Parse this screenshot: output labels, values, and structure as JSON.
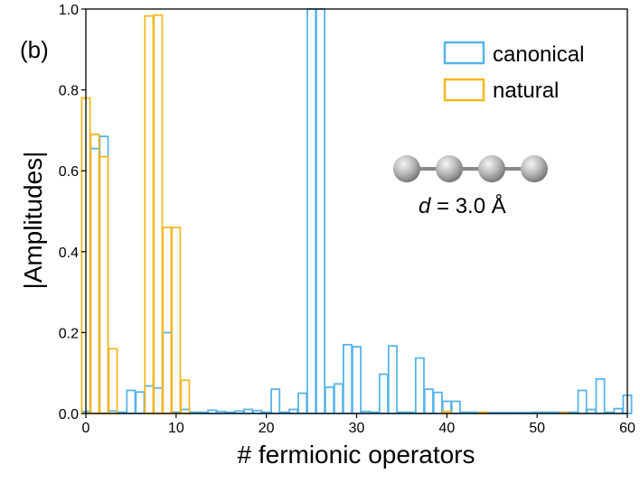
{
  "chart_data": {
    "type": "bar",
    "title": "",
    "panel_label": "(b)",
    "xlabel": "# fermionic operators",
    "ylabel": "|Amplitudes|",
    "xlim": [
      0,
      60
    ],
    "ylim": [
      0,
      1.0
    ],
    "xticks": [
      0,
      10,
      20,
      30,
      40,
      50,
      60
    ],
    "yticks": [
      0.0,
      0.2,
      0.4,
      0.6,
      0.8,
      1.0
    ],
    "xtick_labels": [
      "0",
      "10",
      "20",
      "30",
      "40",
      "50",
      "60"
    ],
    "ytick_labels": [
      "0.0",
      "0.2",
      "0.4",
      "0.6",
      "0.8",
      "1.0"
    ],
    "grid": false,
    "legend_position": "top-right",
    "annotation": {
      "molecule": "linear H4 chain",
      "d_symbol": "d",
      "d_value": " = 3.0 Å"
    },
    "series": [
      {
        "name": "canonical",
        "color": "#56b4e9",
        "x": [
          0,
          1,
          2,
          3,
          4,
          5,
          6,
          7,
          8,
          9,
          10,
          11,
          12,
          13,
          14,
          15,
          16,
          17,
          18,
          19,
          20,
          21,
          22,
          23,
          24,
          25,
          26,
          27,
          28,
          29,
          30,
          31,
          32,
          33,
          34,
          35,
          36,
          37,
          38,
          39,
          40,
          41,
          42,
          43,
          44,
          45,
          46,
          47,
          48,
          49,
          50,
          51,
          52,
          53,
          54,
          55,
          56,
          57,
          58,
          59,
          60
        ],
        "values": [
          0.005,
          0.655,
          0.685,
          0.006,
          0.003,
          0.057,
          0.053,
          0.068,
          0.063,
          0.2,
          0.003,
          0.01,
          0.003,
          0.003,
          0.008,
          0.005,
          0.003,
          0.006,
          0.01,
          0.007,
          0.003,
          0.06,
          0.003,
          0.01,
          0.05,
          1.0,
          1.0,
          0.065,
          0.073,
          0.17,
          0.165,
          0.005,
          0.003,
          0.097,
          0.167,
          0.003,
          0.003,
          0.137,
          0.06,
          0.052,
          0.03,
          0.03,
          0.003,
          0.003,
          0.002,
          0.002,
          0.002,
          0.002,
          0.002,
          0.002,
          0.003,
          0.003,
          0.003,
          0.003,
          0.003,
          0.057,
          0.01,
          0.085,
          0.003,
          0.012,
          0.045
        ]
      },
      {
        "name": "natural",
        "color": "#f5b81f",
        "x": [
          0,
          1,
          2,
          3,
          4,
          5,
          6,
          7,
          8,
          9,
          10,
          11,
          12,
          13,
          14,
          15,
          16,
          17,
          18,
          19,
          20,
          21,
          22,
          23,
          24,
          25,
          26,
          27,
          28,
          29,
          30,
          31,
          32,
          33,
          34,
          35,
          36,
          37,
          38,
          39,
          40,
          41,
          42,
          43,
          44,
          45,
          46,
          47,
          48,
          49,
          50,
          51,
          52,
          53,
          54,
          55,
          56,
          57,
          58,
          59,
          60
        ],
        "values": [
          0.78,
          0.69,
          0.635,
          0.16,
          0,
          0,
          0,
          0.983,
          0.985,
          0.46,
          0.46,
          0.082,
          0,
          0,
          0,
          0,
          0,
          0,
          0,
          0,
          0,
          0,
          0,
          0,
          0,
          0,
          0,
          0,
          0,
          0,
          0,
          0,
          0,
          0,
          0,
          0,
          0,
          0,
          0,
          0,
          0.005,
          0,
          0,
          0,
          0.003,
          0,
          0,
          0,
          0,
          0,
          0,
          0,
          0,
          0.002,
          0,
          0,
          0,
          0,
          0,
          0,
          0
        ]
      }
    ]
  }
}
